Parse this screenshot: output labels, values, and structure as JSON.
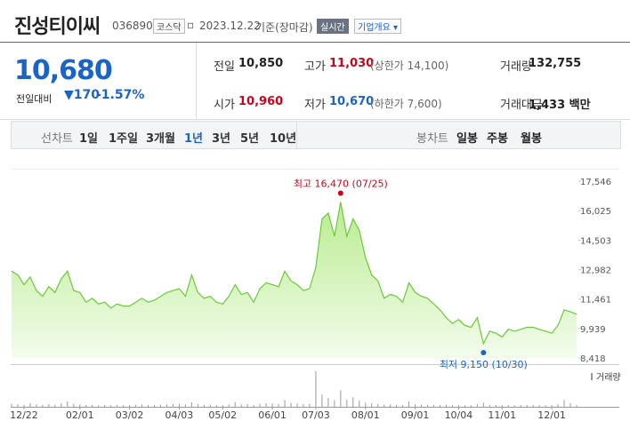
{
  "header": {
    "name": "진성티이씨",
    "code": "036890",
    "market": "코스닥",
    "date": "2023.12.22",
    "basis": "기준(장마감)",
    "badge": "실시간",
    "overview": "기업개요"
  },
  "quote": {
    "price": "10,680",
    "change_label": "전일대비",
    "change": "170",
    "change_pct": "-1.57%"
  },
  "stats": [
    {
      "label": "전일",
      "value": "10,850"
    },
    {
      "label": "고가",
      "value": "11,030",
      "note": "(상한가 14,100)"
    },
    {
      "label": "거래량",
      "value": "132,755"
    },
    {
      "label": "시가",
      "value": "10,960"
    },
    {
      "label": "저가",
      "value": "10,670",
      "note": "(하한가 7,600)"
    },
    {
      "label": "거래대금",
      "value": "1,433 백만"
    }
  ],
  "tabs": {
    "line_label": "선차트",
    "line": [
      "1일",
      "1주일",
      "3개월",
      "1년",
      "3년",
      "5년",
      "10년"
    ],
    "candle_label": "봉차트",
    "candle": [
      "일봉",
      "주봉",
      "월봉"
    ]
  },
  "chart_data": {
    "type": "line",
    "color": "#6cc83a",
    "categories": [
      null,
      null,
      "12/22",
      null,
      null,
      null,
      null,
      null,
      null,
      null,
      null,
      "02/01",
      null,
      null,
      null,
      null,
      null,
      null,
      null,
      "03/02",
      null,
      null,
      null,
      null,
      null,
      null,
      null,
      "04/03",
      null,
      null,
      null,
      null,
      null,
      null,
      "05/02",
      null,
      null,
      null,
      null,
      null,
      null,
      null,
      "06/01",
      null,
      null,
      null,
      null,
      null,
      null,
      "07/03",
      null,
      null,
      null,
      null,
      null,
      null,
      null,
      "08/01",
      null,
      null,
      null,
      null,
      null,
      null,
      null,
      "09/01",
      null,
      null,
      null,
      null,
      null,
      null,
      "10/04",
      null,
      null,
      null,
      null,
      null,
      null,
      "11/01",
      null,
      null,
      null,
      null,
      null,
      null,
      null,
      "12/01",
      null,
      null,
      null,
      null
    ],
    "values": [
      12900,
      12700,
      12200,
      12600,
      11900,
      11600,
      12100,
      11800,
      12500,
      12900,
      11900,
      11800,
      11300,
      11500,
      11200,
      11300,
      11000,
      11200,
      11100,
      11100,
      11300,
      11500,
      11300,
      11400,
      11600,
      11800,
      11900,
      12000,
      11600,
      12700,
      11800,
      11500,
      11600,
      11300,
      11200,
      11600,
      12200,
      11700,
      11800,
      11300,
      12000,
      12300,
      12200,
      12100,
      12900,
      12400,
      12200,
      11900,
      12000,
      13100,
      15600,
      15900,
      14700,
      16470,
      14700,
      15600,
      15000,
      13600,
      12700,
      12400,
      11500,
      11700,
      11600,
      11300,
      12300,
      11800,
      11600,
      11500,
      11200,
      10900,
      10500,
      10200,
      10400,
      10100,
      10000,
      10500,
      9150,
      9800,
      9700,
      9500,
      9900,
      9800,
      9900,
      10000,
      10000,
      9900,
      9800,
      9700,
      10100,
      10900,
      10800,
      10680
    ],
    "volume": {
      "name": "거래량",
      "color": "#999999",
      "values": [
        220000,
        180000,
        150000,
        260000,
        170000,
        140000,
        200000,
        160000,
        250000,
        400000,
        210000,
        180000,
        130000,
        150000,
        120000,
        140000,
        110000,
        130000,
        120000,
        110000,
        150000,
        170000,
        140000,
        130000,
        160000,
        180000,
        200000,
        220000,
        170000,
        330000,
        190000,
        150000,
        160000,
        130000,
        120000,
        170000,
        350000,
        180000,
        190000,
        140000,
        220000,
        260000,
        230000,
        210000,
        500000,
        280000,
        240000,
        190000,
        210000,
        2600000,
        900000,
        650000,
        480000,
        1200000,
        520000,
        700000,
        450000,
        300000,
        240000,
        200000,
        160000,
        170000,
        150000,
        140000,
        400000,
        190000,
        160000,
        150000,
        140000,
        130000,
        150000,
        130000,
        140000,
        120000,
        110000,
        200000,
        300000,
        160000,
        130000,
        120000,
        140000,
        120000,
        130000,
        140000,
        130000,
        120000,
        110000,
        120000,
        180000,
        500000,
        260000,
        132755
      ]
    },
    "ylim": [
      8418,
      17546
    ],
    "yticks": [
      {
        "value": 8418,
        "label": "8,418"
      },
      {
        "value": 9939,
        "label": "9,939"
      },
      {
        "value": 11461,
        "label": "11,461"
      },
      {
        "value": 12982,
        "label": "12,982"
      },
      {
        "value": 14503,
        "label": "14,503"
      },
      {
        "value": 16025,
        "label": "16,025"
      },
      {
        "value": 17546,
        "label": "17,546"
      }
    ],
    "annotations": [
      {
        "label": "최고 16,470 (07/25)",
        "value": 16470,
        "color": "#d0021b",
        "position": "above"
      },
      {
        "label": "최저 9,150 (10/30)",
        "value": 9150,
        "color": "#1a64c8",
        "position": "below"
      }
    ]
  }
}
